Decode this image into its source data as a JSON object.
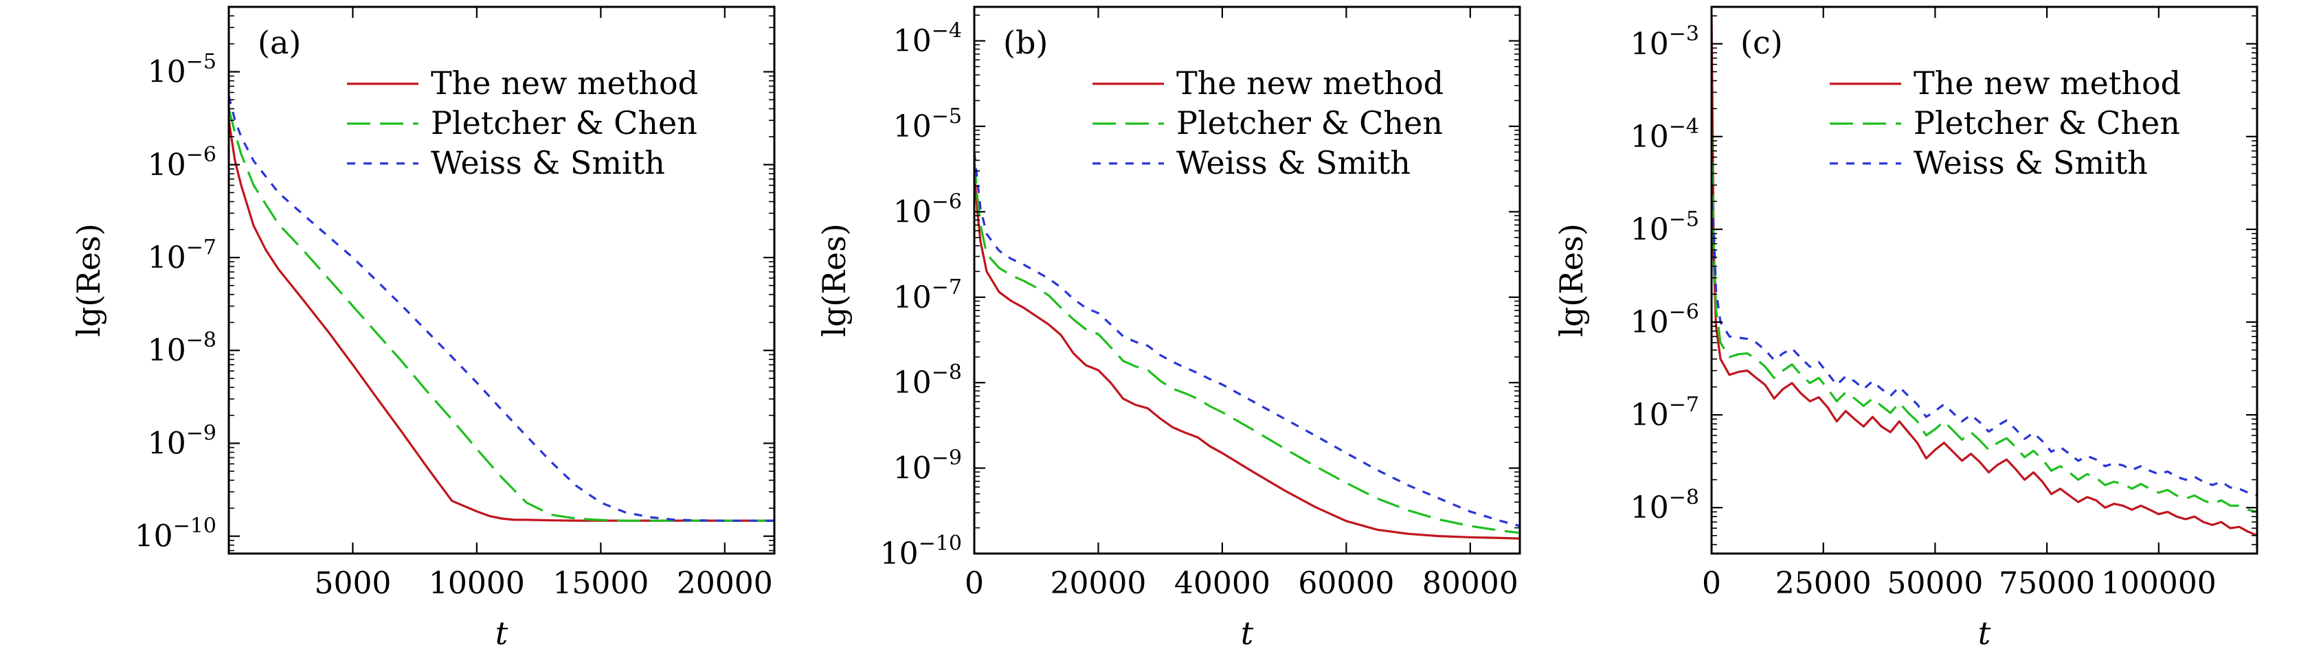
{
  "colors": {
    "new_method": "#c0161d",
    "pletcher_chen": "#1fbf1f",
    "weiss_smith": "#2a35d6",
    "axes": "#000000",
    "background": "#ffffff"
  },
  "legend": {
    "placement": "top-right",
    "entries": [
      {
        "label": "The new method",
        "style": "solid",
        "color_key": "new_method"
      },
      {
        "label": "Pletcher & Chen",
        "style": "long-dash",
        "color_key": "pletcher_chen"
      },
      {
        "label": "Weiss & Smith",
        "style": "short-dash",
        "color_key": "weiss_smith"
      }
    ]
  },
  "chart_data": [
    {
      "type": "line",
      "panel_label": "(a)",
      "xlabel": "t",
      "ylabel": "lg(Res)",
      "yscale": "log",
      "xlim": [
        0,
        22000
      ],
      "ylim": [
        6.5e-11,
        5e-05
      ],
      "grid": false,
      "x_ticks": [
        5000,
        10000,
        15000,
        20000
      ],
      "x_tick_labels": [
        "5000",
        "10000",
        "15000",
        "20000"
      ],
      "y_tick_exponents": [
        "-10",
        "-9",
        "-8",
        "-7",
        "-6",
        "-5"
      ],
      "series": [
        {
          "name": "The new method",
          "style": "solid",
          "x": [
            0,
            250,
            500,
            1000,
            1500,
            2000,
            3000,
            4000,
            5000,
            6000,
            7000,
            8000,
            9000,
            10000,
            10500,
            11000,
            11500,
            12000,
            13000,
            14000,
            16000,
            18000,
            20000,
            22000
          ],
          "y": [
            3e-06,
            1.1e-06,
            6e-07,
            2.2e-07,
            1.2e-07,
            7.5e-08,
            3.5e-08,
            1.6e-08,
            7e-09,
            3e-09,
            1.3e-09,
            5.5e-10,
            2.4e-10,
            1.85e-10,
            1.65e-10,
            1.55e-10,
            1.5e-10,
            1.5e-10,
            1.48e-10,
            1.47e-10,
            1.47e-10,
            1.47e-10,
            1.47e-10,
            1.47e-10
          ]
        },
        {
          "name": "Pletcher & Chen",
          "style": "long-dash",
          "x": [
            0,
            250,
            500,
            1000,
            2000,
            3000,
            4000,
            5000,
            6000,
            7000,
            8000,
            9000,
            10000,
            11000,
            12000,
            13000,
            14000,
            14800,
            15500,
            16000,
            17000,
            18000,
            20000,
            22000
          ],
          "y": [
            4e-06,
            2.2e-06,
            1.3e-06,
            6e-07,
            2.3e-07,
            1.2e-07,
            6e-08,
            3e-08,
            1.5e-08,
            7.5e-09,
            3.6e-09,
            1.8e-09,
            8.7e-10,
            4.3e-10,
            2.3e-10,
            1.7e-10,
            1.55e-10,
            1.5e-10,
            1.48e-10,
            1.47e-10,
            1.47e-10,
            1.47e-10,
            1.47e-10,
            1.47e-10
          ]
        },
        {
          "name": "Weiss & Smith",
          "style": "short-dash",
          "x": [
            0,
            250,
            500,
            1000,
            2000,
            3000,
            4000,
            5000,
            6000,
            7000,
            8000,
            9000,
            10000,
            11000,
            12000,
            13000,
            14000,
            15000,
            16000,
            17000,
            18000,
            19000,
            20000,
            22000
          ],
          "y": [
            5.5e-06,
            3e-06,
            2e-06,
            1.1e-06,
            5e-07,
            2.9e-07,
            1.7e-07,
            1e-07,
            5.5e-08,
            3e-08,
            1.6e-08,
            8.5e-09,
            4.5e-09,
            2.3e-09,
            1.2e-09,
            6.3e-10,
            3.5e-10,
            2.3e-10,
            1.8e-10,
            1.6e-10,
            1.5e-10,
            1.48e-10,
            1.47e-10,
            1.47e-10
          ]
        }
      ]
    },
    {
      "type": "line",
      "panel_label": "(b)",
      "xlabel": "t",
      "ylabel": "lg(Res)",
      "yscale": "log",
      "xlim": [
        0,
        88000
      ],
      "ylim": [
        1e-10,
        0.00025
      ],
      "grid": false,
      "x_ticks": [
        0,
        20000,
        40000,
        60000,
        80000
      ],
      "x_tick_labels": [
        "0",
        "20000",
        "40000",
        "60000",
        "80000"
      ],
      "y_tick_exponents": [
        "-10",
        "-9",
        "-8",
        "-7",
        "-6",
        "-5",
        "-4"
      ],
      "series": [
        {
          "name": "The new method",
          "style": "solid",
          "x": [
            0,
            500,
            1000,
            2000,
            4000,
            6000,
            8000,
            10000,
            12000,
            14000,
            16000,
            18000,
            20000,
            22000,
            24000,
            26000,
            28000,
            30000,
            32000,
            34000,
            36000,
            38000,
            40000,
            45000,
            50000,
            55000,
            60000,
            65000,
            70000,
            75000,
            80000,
            85000,
            88000
          ],
          "y": [
            3e-06,
            1e-06,
            4.5e-07,
            2e-07,
            1.15e-07,
            9e-08,
            7.5e-08,
            6e-08,
            4.8e-08,
            3.6e-08,
            2.2e-08,
            1.6e-08,
            1.4e-08,
            1e-08,
            6.5e-09,
            5.5e-09,
            5e-09,
            3.8e-09,
            3e-09,
            2.6e-09,
            2.3e-09,
            1.8e-09,
            1.5e-09,
            9e-10,
            5.5e-10,
            3.5e-10,
            2.4e-10,
            1.9e-10,
            1.7e-10,
            1.6e-10,
            1.55e-10,
            1.52e-10,
            1.5e-10
          ]
        },
        {
          "name": "Pletcher & Chen",
          "style": "long-dash",
          "x": [
            0,
            500,
            1000,
            2000,
            4000,
            6000,
            8000,
            10000,
            12000,
            14000,
            16000,
            18000,
            20000,
            22000,
            24000,
            26000,
            28000,
            30000,
            32000,
            34000,
            36000,
            38000,
            40000,
            45000,
            50000,
            55000,
            60000,
            65000,
            70000,
            75000,
            80000,
            85000,
            88000
          ],
          "y": [
            4e-06,
            1.5e-06,
            7e-07,
            3.2e-07,
            2.2e-07,
            1.8e-07,
            1.55e-07,
            1.3e-07,
            1.05e-07,
            7.5e-08,
            5.5e-08,
            4.2e-08,
            3.7e-08,
            2.6e-08,
            1.8e-08,
            1.55e-08,
            1.4e-08,
            1.05e-08,
            8.5e-09,
            7.5e-09,
            6.5e-09,
            5.3e-09,
            4.5e-09,
            2.8e-09,
            1.7e-09,
            1.05e-09,
            6.7e-10,
            4.4e-10,
            3.2e-10,
            2.5e-10,
            2.1e-10,
            1.85e-10,
            1.75e-10
          ]
        },
        {
          "name": "Weiss & Smith",
          "style": "short-dash",
          "x": [
            0,
            500,
            1000,
            2000,
            4000,
            6000,
            8000,
            10000,
            12000,
            14000,
            16000,
            18000,
            20000,
            22000,
            24000,
            26000,
            28000,
            30000,
            32000,
            34000,
            36000,
            38000,
            40000,
            45000,
            50000,
            55000,
            60000,
            65000,
            70000,
            75000,
            80000,
            85000,
            88000
          ],
          "y": [
            5e-06,
            2.3e-06,
            1.1e-06,
            5.5e-07,
            3.5e-07,
            2.8e-07,
            2.4e-07,
            2e-07,
            1.65e-07,
            1.3e-07,
            9.5e-08,
            7.5e-08,
            6.5e-08,
            4.8e-08,
            3.5e-08,
            3e-08,
            2.7e-08,
            2.1e-08,
            1.75e-08,
            1.5e-08,
            1.3e-08,
            1.1e-08,
            9.5e-09,
            6e-09,
            3.8e-09,
            2.4e-09,
            1.5e-09,
            9.5e-10,
            6.3e-10,
            4.4e-10,
            3.1e-10,
            2.4e-10,
            2.1e-10
          ]
        }
      ]
    },
    {
      "type": "line",
      "panel_label": "(c)",
      "xlabel": "t",
      "ylabel": "lg(Res)",
      "yscale": "log",
      "xlim": [
        0,
        122000
      ],
      "ylim": [
        3.2e-09,
        0.0025
      ],
      "grid": false,
      "x_ticks": [
        0,
        25000,
        50000,
        75000,
        100000
      ],
      "x_tick_labels": [
        "0",
        "25000",
        "50000",
        "75000",
        "100000"
      ],
      "y_tick_exponents": [
        "-8",
        "-7",
        "-6",
        "-5",
        "-4",
        "-3"
      ],
      "series": [
        {
          "name": "The new method",
          "style": "solid",
          "x": [
            0,
            500,
            1000,
            2000,
            4000,
            6000,
            8000,
            10000,
            12000,
            14000,
            16000,
            18000,
            20000,
            22000,
            24000,
            26000,
            28000,
            30000,
            32000,
            34000,
            36000,
            38000,
            40000,
            42000,
            44000,
            46000,
            48000,
            50000,
            52000,
            54000,
            56000,
            58000,
            60000,
            62000,
            64000,
            66000,
            68000,
            70000,
            72000,
            74000,
            76000,
            78000,
            80000,
            82000,
            84000,
            86000,
            88000,
            90000,
            92000,
            94000,
            96000,
            98000,
            100000,
            102000,
            104000,
            106000,
            108000,
            110000,
            112000,
            114000,
            116000,
            118000,
            120000,
            122000
          ],
          "y": [
            0.002,
            5e-06,
            9e-07,
            4e-07,
            2.7e-07,
            2.9e-07,
            3e-07,
            2.5e-07,
            2.1e-07,
            1.5e-07,
            1.9e-07,
            2.2e-07,
            1.7e-07,
            1.4e-07,
            1.55e-07,
            1.2e-07,
            8.5e-08,
            1.1e-07,
            9e-08,
            7.5e-08,
            9.5e-08,
            7.5e-08,
            6.5e-08,
            8.5e-08,
            6.5e-08,
            5e-08,
            3.4e-08,
            4.2e-08,
            5e-08,
            4e-08,
            3.2e-08,
            3.8e-08,
            3.1e-08,
            2.4e-08,
            2.9e-08,
            3.3e-08,
            2.6e-08,
            2e-08,
            2.4e-08,
            1.9e-08,
            1.4e-08,
            1.6e-08,
            1.35e-08,
            1.15e-08,
            1.3e-08,
            1.2e-08,
            1e-08,
            1.1e-08,
            1.05e-08,
            9.5e-09,
            1.05e-08,
            9.5e-09,
            8.5e-09,
            9e-09,
            8e-09,
            7.5e-09,
            8e-09,
            7e-09,
            6.5e-09,
            7e-09,
            6e-09,
            6.2e-09,
            5.5e-09,
            5e-09
          ]
        },
        {
          "name": "Pletcher & Chen",
          "style": "long-dash",
          "x": [
            0,
            500,
            1000,
            2000,
            4000,
            6000,
            8000,
            10000,
            12000,
            14000,
            16000,
            18000,
            20000,
            22000,
            24000,
            26000,
            28000,
            30000,
            32000,
            34000,
            36000,
            38000,
            40000,
            42000,
            44000,
            46000,
            48000,
            50000,
            52000,
            54000,
            56000,
            58000,
            60000,
            62000,
            64000,
            66000,
            68000,
            70000,
            72000,
            74000,
            76000,
            78000,
            80000,
            82000,
            84000,
            86000,
            88000,
            90000,
            92000,
            94000,
            96000,
            98000,
            100000,
            102000,
            104000,
            106000,
            108000,
            110000,
            112000,
            114000,
            116000,
            118000,
            120000,
            122000
          ],
          "y": [
            0.00012,
            7e-06,
            1.4e-06,
            6e-07,
            4.2e-07,
            4.5e-07,
            4.6e-07,
            4e-07,
            3.3e-07,
            2.5e-07,
            3e-07,
            3.5e-07,
            2.7e-07,
            2.2e-07,
            2.5e-07,
            1.9e-07,
            1.4e-07,
            1.75e-07,
            1.5e-07,
            1.25e-07,
            1.5e-07,
            1.25e-07,
            1.05e-07,
            1.35e-07,
            1.05e-07,
            8.5e-08,
            6e-08,
            7e-08,
            8.5e-08,
            6.8e-08,
            5.4e-08,
            6.5e-08,
            5.3e-08,
            4.2e-08,
            5e-08,
            5.6e-08,
            4.5e-08,
            3.5e-08,
            4.1e-08,
            3.3e-08,
            2.5e-08,
            2.8e-08,
            2.4e-08,
            2e-08,
            2.3e-08,
            2.1e-08,
            1.75e-08,
            1.9e-08,
            1.8e-08,
            1.6e-08,
            1.8e-08,
            1.6e-08,
            1.45e-08,
            1.55e-08,
            1.35e-08,
            1.25e-08,
            1.35e-08,
            1.2e-08,
            1.1e-08,
            1.2e-08,
            1.05e-08,
            1.05e-08,
            9.5e-09,
            9e-09
          ]
        },
        {
          "name": "Weiss & Smith",
          "style": "short-dash",
          "x": [
            0,
            500,
            1000,
            2000,
            4000,
            6000,
            8000,
            10000,
            12000,
            14000,
            16000,
            18000,
            20000,
            22000,
            24000,
            26000,
            28000,
            30000,
            32000,
            34000,
            36000,
            38000,
            40000,
            42000,
            44000,
            46000,
            48000,
            50000,
            52000,
            54000,
            56000,
            58000,
            60000,
            62000,
            64000,
            66000,
            68000,
            70000,
            72000,
            74000,
            76000,
            78000,
            80000,
            82000,
            84000,
            86000,
            88000,
            90000,
            92000,
            94000,
            96000,
            98000,
            100000,
            102000,
            104000,
            106000,
            108000,
            110000,
            112000,
            114000,
            116000,
            118000,
            120000,
            122000
          ],
          "y": [
            2e-05,
            1e-05,
            2.2e-06,
            1e-06,
            7e-07,
            6.8e-07,
            6.6e-07,
            6e-07,
            5e-07,
            3.9e-07,
            4.6e-07,
            5.2e-07,
            4.1e-07,
            3.3e-07,
            3.7e-07,
            2.8e-07,
            2.1e-07,
            2.6e-07,
            2.3e-07,
            1.9e-07,
            2.3e-07,
            1.9e-07,
            1.6e-07,
            2e-07,
            1.6e-07,
            1.3e-07,
            9.5e-08,
            1.1e-07,
            1.3e-07,
            1.05e-07,
            8.5e-08,
            1e-07,
            8.3e-08,
            6.6e-08,
            7.7e-08,
            8.7e-08,
            7e-08,
            5.5e-08,
            6.4e-08,
            5.2e-08,
            4e-08,
            4.5e-08,
            3.8e-08,
            3.2e-08,
            3.6e-08,
            3.3e-08,
            2.8e-08,
            3e-08,
            2.85e-08,
            2.55e-08,
            2.8e-08,
            2.5e-08,
            2.3e-08,
            2.45e-08,
            2.15e-08,
            2e-08,
            2.15e-08,
            1.9e-08,
            1.75e-08,
            1.9e-08,
            1.65e-08,
            1.6e-08,
            1.45e-08,
            1.35e-08
          ]
        }
      ]
    }
  ]
}
